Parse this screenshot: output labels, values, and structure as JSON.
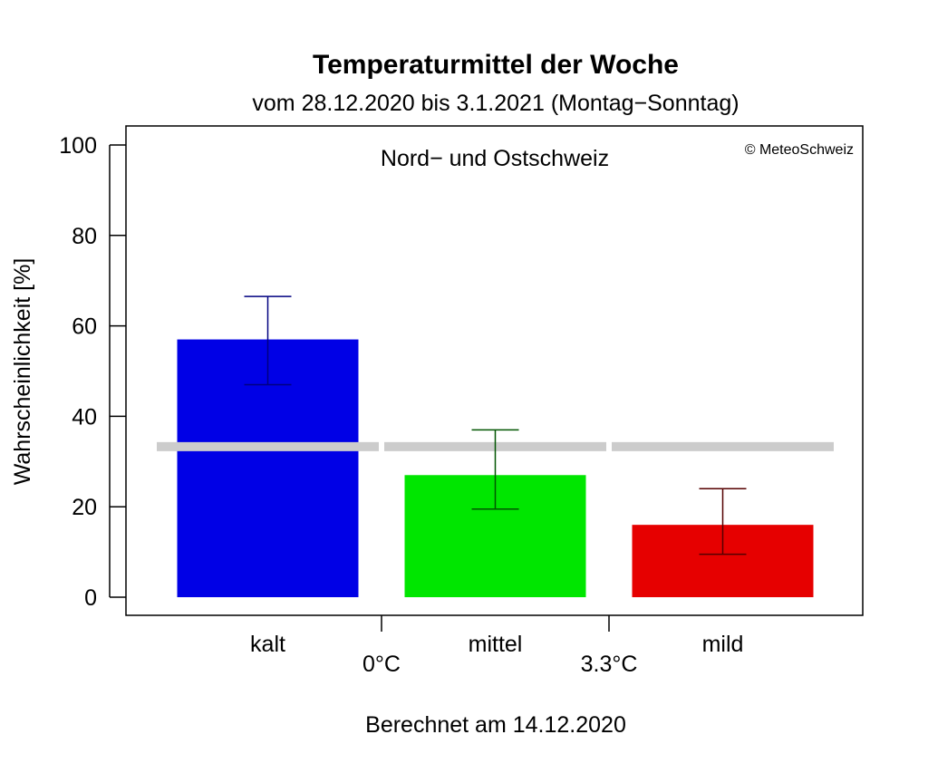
{
  "chart_data": {
    "type": "bar",
    "title": "Temperaturmittel der Woche",
    "subtitle": "vom 28.12.2020 bis 3.1.2021 (Montag−Sonntag)",
    "panel_label": "Nord− und Ostschweiz",
    "copyright": "© MeteoSchweiz",
    "ylabel": "Wahrscheinlichkeit [%]",
    "footer": "Berechnet am 14.12.2020",
    "ylim": [
      0,
      100
    ],
    "yticks": [
      0,
      20,
      40,
      60,
      80,
      100
    ],
    "categories": [
      "kalt",
      "mittel",
      "mild"
    ],
    "values": [
      57,
      27,
      16
    ],
    "error_low": [
      47,
      19.5,
      9.5
    ],
    "error_high": [
      66.5,
      37,
      24
    ],
    "reference_value": 33.3,
    "thresholds": [
      "0°C",
      "3.3°C"
    ],
    "colors": {
      "bars": [
        "#0000e6",
        "#00e600",
        "#e60000"
      ],
      "errors": [
        "#000080",
        "#005500",
        "#550000"
      ],
      "reference": "#cccccc",
      "axis": "#000000"
    }
  }
}
